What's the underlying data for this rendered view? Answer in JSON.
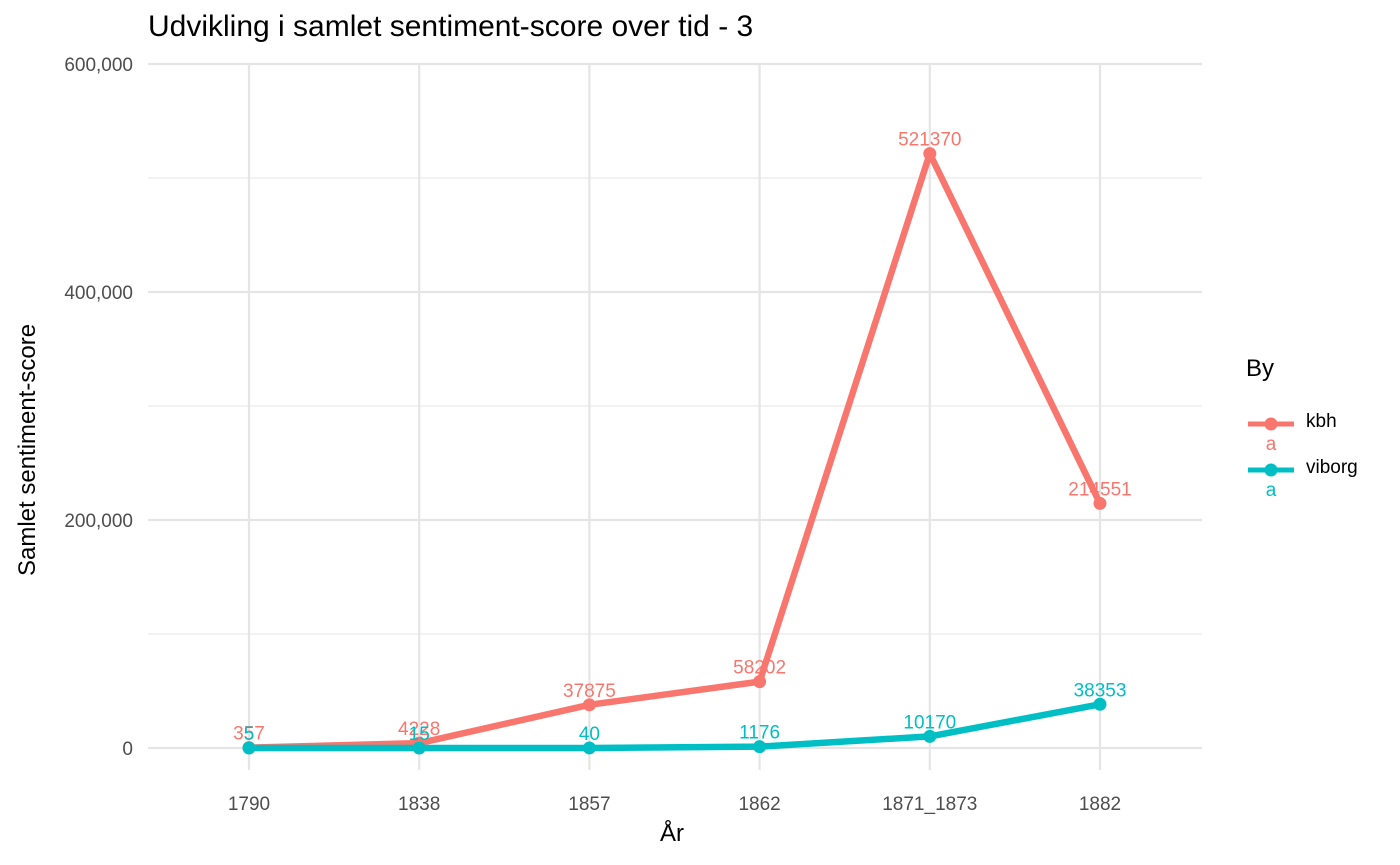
{
  "chart_data": {
    "type": "line",
    "title": "Udvikling i samlet sentiment-score over tid - 3",
    "xlabel": "År",
    "ylabel": "Samlet sentiment-score",
    "categories": [
      "1790",
      "1838",
      "1857",
      "1862",
      "1871_1873",
      "1882"
    ],
    "ylim": [
      -30000,
      600000
    ],
    "yticks": [
      0,
      200000,
      400000,
      600000
    ],
    "ytick_labels": [
      "0",
      "200,000",
      "400,000",
      "600,000"
    ],
    "grid": true,
    "legend": {
      "title": "By",
      "position": "right",
      "key_glyph": "a"
    },
    "series": [
      {
        "name": "kbh",
        "color": "#F8766D",
        "values": [
          357,
          4228,
          37875,
          58202,
          521370,
          214551
        ]
      },
      {
        "name": "viborg",
        "color": "#00BFC4",
        "values": [
          5,
          15,
          40,
          1176,
          10170,
          38353
        ]
      }
    ]
  }
}
